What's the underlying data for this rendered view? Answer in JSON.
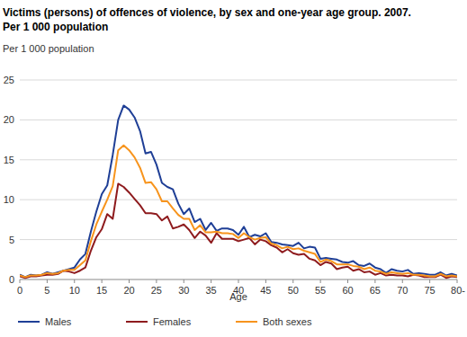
{
  "chart_data": {
    "type": "line",
    "title": "Victims (persons) of offences of violence, by sex and one-year age group. 2007.",
    "subtitle": "Per 1 000 population",
    "y_label": "Per 1 000 population",
    "x_label": "Age",
    "x": [
      0,
      1,
      2,
      3,
      4,
      5,
      6,
      7,
      8,
      9,
      10,
      11,
      12,
      13,
      14,
      15,
      16,
      17,
      18,
      19,
      20,
      21,
      22,
      23,
      24,
      25,
      26,
      27,
      28,
      29,
      30,
      31,
      32,
      33,
      34,
      35,
      36,
      37,
      38,
      39,
      40,
      41,
      42,
      43,
      44,
      45,
      46,
      47,
      48,
      49,
      50,
      51,
      52,
      53,
      54,
      55,
      56,
      57,
      58,
      59,
      60,
      61,
      62,
      63,
      64,
      65,
      66,
      67,
      68,
      69,
      70,
      71,
      72,
      73,
      74,
      75,
      76,
      77,
      78,
      79,
      80
    ],
    "series": [
      {
        "name": "Males",
        "color": "#1f3f96",
        "values": [
          0.6,
          0.3,
          0.6,
          0.5,
          0.6,
          0.9,
          0.7,
          0.9,
          1.1,
          1.3,
          1.5,
          2.5,
          3.2,
          6,
          8.5,
          10.7,
          11.8,
          15.6,
          20,
          21.8,
          21.3,
          20.3,
          18.6,
          15.8,
          16,
          14.4,
          12.1,
          11.6,
          11.3,
          9.5,
          8.2,
          8.9,
          7.2,
          7.6,
          6.2,
          7.1,
          6.1,
          6.4,
          6.4,
          6.2,
          5.6,
          6.6,
          5.3,
          5.6,
          5.4,
          5.8,
          4.7,
          4.6,
          4.4,
          4.3,
          4.2,
          4.6,
          3.9,
          4.1,
          4,
          2.6,
          2.7,
          2.6,
          2.5,
          2.2,
          2.1,
          2.3,
          1.8,
          1.7,
          2,
          1.5,
          1.3,
          0.8,
          1.3,
          1.1,
          1,
          1.2,
          0.7,
          0.8,
          0.7,
          0.6,
          0.6,
          0.9,
          0.5,
          0.7,
          0.5
        ]
      },
      {
        "name": "Females",
        "color": "#8e1b1e",
        "values": [
          0.4,
          0.2,
          0.4,
          0.4,
          0.5,
          0.6,
          0.6,
          0.7,
          1.1,
          1,
          0.8,
          1.1,
          1.5,
          3.6,
          5.3,
          6.3,
          8.2,
          7.6,
          12,
          11.6,
          10.9,
          10.1,
          9.3,
          8.3,
          8.3,
          8.2,
          7.4,
          7.9,
          6.4,
          6.6,
          6.9,
          6.2,
          5.2,
          6,
          5.5,
          4.6,
          5.8,
          5.1,
          5.1,
          5.1,
          4.8,
          5,
          5.2,
          4.4,
          5,
          4.8,
          4.3,
          4,
          3.4,
          3.8,
          3.3,
          3.1,
          3.2,
          2.6,
          2.4,
          1.8,
          2.2,
          2,
          1.3,
          1.5,
          1.6,
          1.1,
          1.3,
          0.9,
          1,
          0.6,
          0.8,
          0.5,
          0.6,
          0.5,
          0.5,
          0.4,
          0.6,
          0.5,
          0.3,
          0.3,
          0.3,
          0.6,
          0.2,
          0.4,
          0.3
        ]
      },
      {
        "name": "Both sexes",
        "color": "#f7941d",
        "values": [
          0.5,
          0.3,
          0.5,
          0.5,
          0.6,
          0.8,
          0.7,
          0.8,
          1.1,
          1.2,
          1.2,
          1.8,
          2.4,
          4.8,
          6.9,
          8.5,
          10,
          11.7,
          16.2,
          16.8,
          16.2,
          15.3,
          14,
          12.1,
          12.2,
          11.3,
          9.8,
          9.8,
          8.9,
          8.1,
          7.6,
          7.6,
          6.2,
          6.8,
          5.9,
          5.9,
          6,
          5.8,
          5.8,
          5.7,
          5.2,
          5.8,
          5.3,
          5,
          5.2,
          5.3,
          4.5,
          4.3,
          3.9,
          4.1,
          3.8,
          3.9,
          3.6,
          3.4,
          3.2,
          2.2,
          2.5,
          2.3,
          1.9,
          1.9,
          1.9,
          1.7,
          1.6,
          1.3,
          1.5,
          1.1,
          1,
          0.7,
          0.9,
          0.8,
          0.7,
          0.8,
          0.6,
          0.6,
          0.5,
          0.4,
          0.4,
          0.7,
          0.4,
          0.5,
          0.4
        ]
      }
    ],
    "xlim": [
      0,
      80
    ],
    "xticks": [
      0,
      5,
      10,
      15,
      20,
      25,
      30,
      35,
      40,
      45,
      50,
      55,
      60,
      65,
      70,
      75,
      {
        "value": 80,
        "label": "80-"
      }
    ],
    "ylim": [
      0,
      25
    ],
    "yticks": [
      0,
      5,
      10,
      15,
      20,
      25
    ],
    "grid": true,
    "legend": "bottom"
  }
}
